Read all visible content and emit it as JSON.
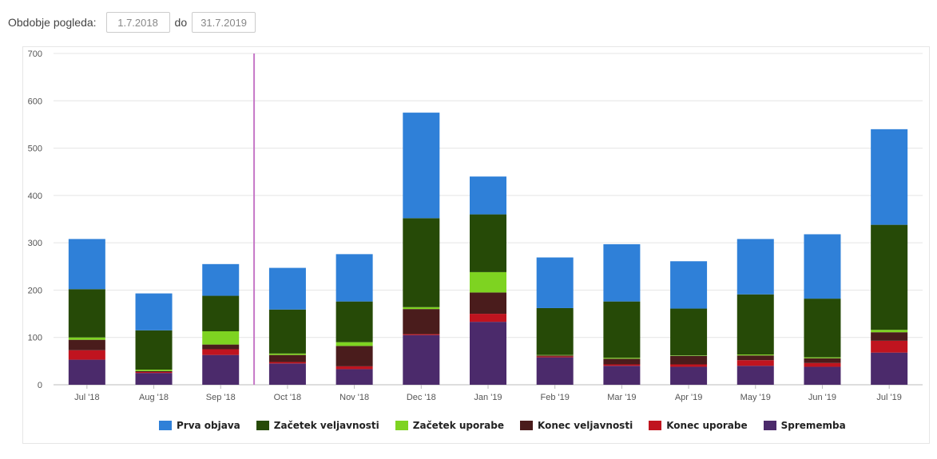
{
  "filter": {
    "label": "Obdobje pogleda:",
    "from": "1.7.2018",
    "separator": "do",
    "to": "31.7.2019"
  },
  "chart_data": {
    "type": "bar",
    "stacked": true,
    "categories": [
      "Jul '18",
      "Aug '18",
      "Sep '18",
      "Oct '18",
      "Nov '18",
      "Dec '18",
      "Jan '19",
      "Feb '19",
      "Mar '19",
      "Apr '19",
      "May '19",
      "Jun '19",
      "Jul '19"
    ],
    "yticks": [
      0,
      100,
      200,
      300,
      400,
      500,
      600,
      700
    ],
    "ylim": [
      0,
      700
    ],
    "grid": true,
    "legend_position": "bottom",
    "marker_line_between": [
      "Sep '18",
      "Oct '18"
    ],
    "marker_color": "#c678c7",
    "series": [
      {
        "name": "Sprememba",
        "color": "#4b2a6b",
        "values": [
          53,
          25,
          63,
          45,
          33,
          105,
          133,
          58,
          40,
          38,
          40,
          38,
          68
        ]
      },
      {
        "name": "Konec uporabe",
        "color": "#c0141f",
        "values": [
          20,
          2,
          12,
          3,
          6,
          2,
          17,
          2,
          3,
          5,
          12,
          8,
          25
        ]
      },
      {
        "name": "Konec veljavnosti",
        "color": "#4a1c1c",
        "values": [
          22,
          2,
          10,
          15,
          43,
          53,
          45,
          2,
          12,
          18,
          10,
          10,
          18
        ]
      },
      {
        "name": "Začetek uporabe",
        "color": "#7ed321",
        "values": [
          5,
          3,
          28,
          3,
          8,
          4,
          43,
          1,
          2,
          1,
          2,
          2,
          5
        ]
      },
      {
        "name": "Začetek veljavnosti",
        "color": "#264a07",
        "values": [
          102,
          83,
          75,
          93,
          86,
          188,
          122,
          99,
          119,
          99,
          127,
          124,
          222
        ]
      },
      {
        "name": "Prva objava",
        "color": "#2f80d8",
        "values": [
          106,
          78,
          67,
          88,
          100,
          223,
          80,
          107,
          121,
          100,
          117,
          136,
          202
        ]
      }
    ]
  },
  "legend_order": [
    "Prva objava",
    "Začetek veljavnosti",
    "Začetek uporabe",
    "Konec veljavnosti",
    "Konec uporabe",
    "Sprememba"
  ]
}
